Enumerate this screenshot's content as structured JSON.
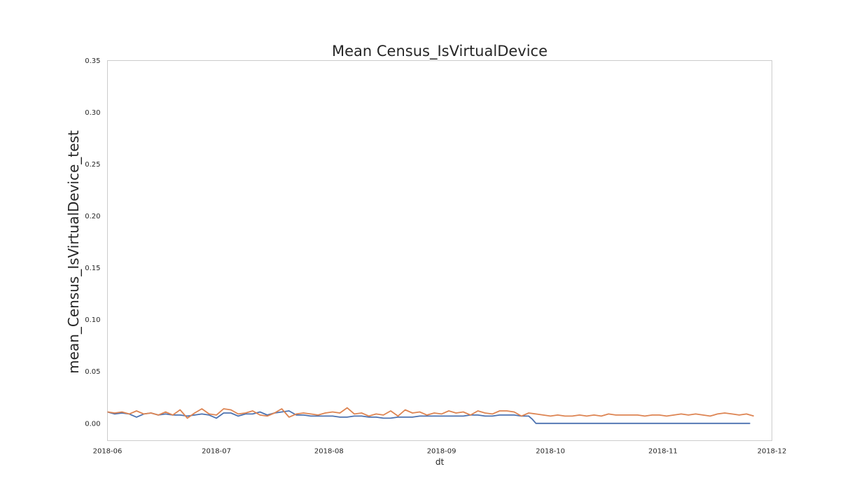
{
  "chart_data": {
    "type": "line",
    "title": "Mean Census_IsVirtualDevice",
    "xlabel": "dt",
    "ylabel": "mean_Census_IsVirtualDevice_test",
    "x_range": [
      "2018-06-01",
      "2018-12-01"
    ],
    "ylim": [
      -0.0167,
      0.35
    ],
    "y_ticks": [
      0.0,
      0.05,
      0.1,
      0.15,
      0.2,
      0.25,
      0.3,
      0.35
    ],
    "y_tick_labels": [
      "0.00",
      "0.05",
      "0.10",
      "0.15",
      "0.20",
      "0.25",
      "0.30",
      "0.35"
    ],
    "x_ticks": [
      "2018-06-01",
      "2018-07-01",
      "2018-08-01",
      "2018-09-01",
      "2018-10-01",
      "2018-11-01",
      "2018-12-01"
    ],
    "x_tick_labels": [
      "2018-06",
      "2018-07",
      "2018-08",
      "2018-09",
      "2018-10",
      "2018-11",
      "2018-12"
    ],
    "grid": false,
    "legend": "none",
    "series": [
      {
        "color": "#4c72b0",
        "x": [
          "2018-06-01",
          "2018-06-03",
          "2018-06-05",
          "2018-06-07",
          "2018-06-09",
          "2018-06-11",
          "2018-06-13",
          "2018-06-15",
          "2018-06-17",
          "2018-06-19",
          "2018-06-21",
          "2018-06-23",
          "2018-06-25",
          "2018-06-27",
          "2018-06-29",
          "2018-07-01",
          "2018-07-03",
          "2018-07-05",
          "2018-07-07",
          "2018-07-09",
          "2018-07-11",
          "2018-07-13",
          "2018-07-15",
          "2018-07-17",
          "2018-07-19",
          "2018-07-21",
          "2018-07-23",
          "2018-07-25",
          "2018-07-27",
          "2018-07-29",
          "2018-07-31",
          "2018-08-02",
          "2018-08-04",
          "2018-08-06",
          "2018-08-08",
          "2018-08-10",
          "2018-08-12",
          "2018-08-14",
          "2018-08-16",
          "2018-08-18",
          "2018-08-20",
          "2018-08-22",
          "2018-08-24",
          "2018-08-26",
          "2018-08-28",
          "2018-08-30",
          "2018-09-01",
          "2018-09-03",
          "2018-09-05",
          "2018-09-07",
          "2018-09-09",
          "2018-09-11",
          "2018-09-13",
          "2018-09-15",
          "2018-09-17",
          "2018-09-19",
          "2018-09-21",
          "2018-09-23",
          "2018-09-25",
          "2018-09-26",
          "2018-09-27",
          "2018-10-05",
          "2018-10-15",
          "2018-10-25",
          "2018-11-05",
          "2018-11-15",
          "2018-11-25"
        ],
        "y": [
          0.011,
          0.009,
          0.01,
          0.009,
          0.006,
          0.009,
          0.01,
          0.008,
          0.009,
          0.008,
          0.008,
          0.007,
          0.008,
          0.009,
          0.008,
          0.005,
          0.01,
          0.01,
          0.007,
          0.009,
          0.009,
          0.011,
          0.008,
          0.01,
          0.011,
          0.012,
          0.008,
          0.008,
          0.007,
          0.007,
          0.007,
          0.007,
          0.006,
          0.006,
          0.007,
          0.007,
          0.006,
          0.006,
          0.005,
          0.005,
          0.006,
          0.006,
          0.006,
          0.007,
          0.007,
          0.007,
          0.007,
          0.007,
          0.007,
          0.007,
          0.008,
          0.008,
          0.007,
          0.007,
          0.008,
          0.008,
          0.008,
          0.007,
          0.007,
          0.004,
          0.0,
          0.0,
          0.0,
          0.0,
          0.0,
          0.0,
          0.0
        ]
      },
      {
        "color": "#dd8452",
        "x": [
          "2018-06-01",
          "2018-06-03",
          "2018-06-05",
          "2018-06-07",
          "2018-06-09",
          "2018-06-11",
          "2018-06-13",
          "2018-06-15",
          "2018-06-17",
          "2018-06-19",
          "2018-06-21",
          "2018-06-23",
          "2018-06-25",
          "2018-06-27",
          "2018-06-29",
          "2018-07-01",
          "2018-07-03",
          "2018-07-05",
          "2018-07-07",
          "2018-07-09",
          "2018-07-11",
          "2018-07-13",
          "2018-07-15",
          "2018-07-17",
          "2018-07-19",
          "2018-07-21",
          "2018-07-23",
          "2018-07-25",
          "2018-07-27",
          "2018-07-29",
          "2018-07-31",
          "2018-08-02",
          "2018-08-04",
          "2018-08-06",
          "2018-08-08",
          "2018-08-10",
          "2018-08-12",
          "2018-08-14",
          "2018-08-16",
          "2018-08-18",
          "2018-08-20",
          "2018-08-22",
          "2018-08-24",
          "2018-08-26",
          "2018-08-28",
          "2018-08-30",
          "2018-09-01",
          "2018-09-03",
          "2018-09-05",
          "2018-09-07",
          "2018-09-09",
          "2018-09-11",
          "2018-09-13",
          "2018-09-15",
          "2018-09-17",
          "2018-09-19",
          "2018-09-21",
          "2018-09-23",
          "2018-09-25",
          "2018-09-27",
          "2018-09-29",
          "2018-10-01",
          "2018-10-03",
          "2018-10-05",
          "2018-10-07",
          "2018-10-09",
          "2018-10-11",
          "2018-10-13",
          "2018-10-15",
          "2018-10-17",
          "2018-10-19",
          "2018-10-21",
          "2018-10-23",
          "2018-10-25",
          "2018-10-27",
          "2018-10-29",
          "2018-10-31",
          "2018-11-02",
          "2018-11-04",
          "2018-11-06",
          "2018-11-08",
          "2018-11-10",
          "2018-11-12",
          "2018-11-14",
          "2018-11-16",
          "2018-11-18",
          "2018-11-20",
          "2018-11-22",
          "2018-11-24",
          "2018-11-26"
        ],
        "y": [
          0.011,
          0.01,
          0.011,
          0.009,
          0.012,
          0.009,
          0.01,
          0.008,
          0.011,
          0.008,
          0.013,
          0.005,
          0.01,
          0.014,
          0.009,
          0.008,
          0.014,
          0.013,
          0.009,
          0.01,
          0.012,
          0.008,
          0.007,
          0.01,
          0.014,
          0.006,
          0.009,
          0.01,
          0.009,
          0.008,
          0.01,
          0.011,
          0.01,
          0.015,
          0.009,
          0.01,
          0.007,
          0.009,
          0.008,
          0.012,
          0.007,
          0.013,
          0.01,
          0.011,
          0.008,
          0.01,
          0.009,
          0.012,
          0.01,
          0.011,
          0.008,
          0.012,
          0.01,
          0.009,
          0.012,
          0.012,
          0.011,
          0.007,
          0.01,
          0.009,
          0.008,
          0.007,
          0.008,
          0.007,
          0.007,
          0.008,
          0.007,
          0.008,
          0.007,
          0.009,
          0.008,
          0.008,
          0.008,
          0.008,
          0.007,
          0.008,
          0.008,
          0.007,
          0.008,
          0.009,
          0.008,
          0.009,
          0.008,
          0.007,
          0.009,
          0.01,
          0.009,
          0.008,
          0.009,
          0.007
        ]
      }
    ]
  }
}
